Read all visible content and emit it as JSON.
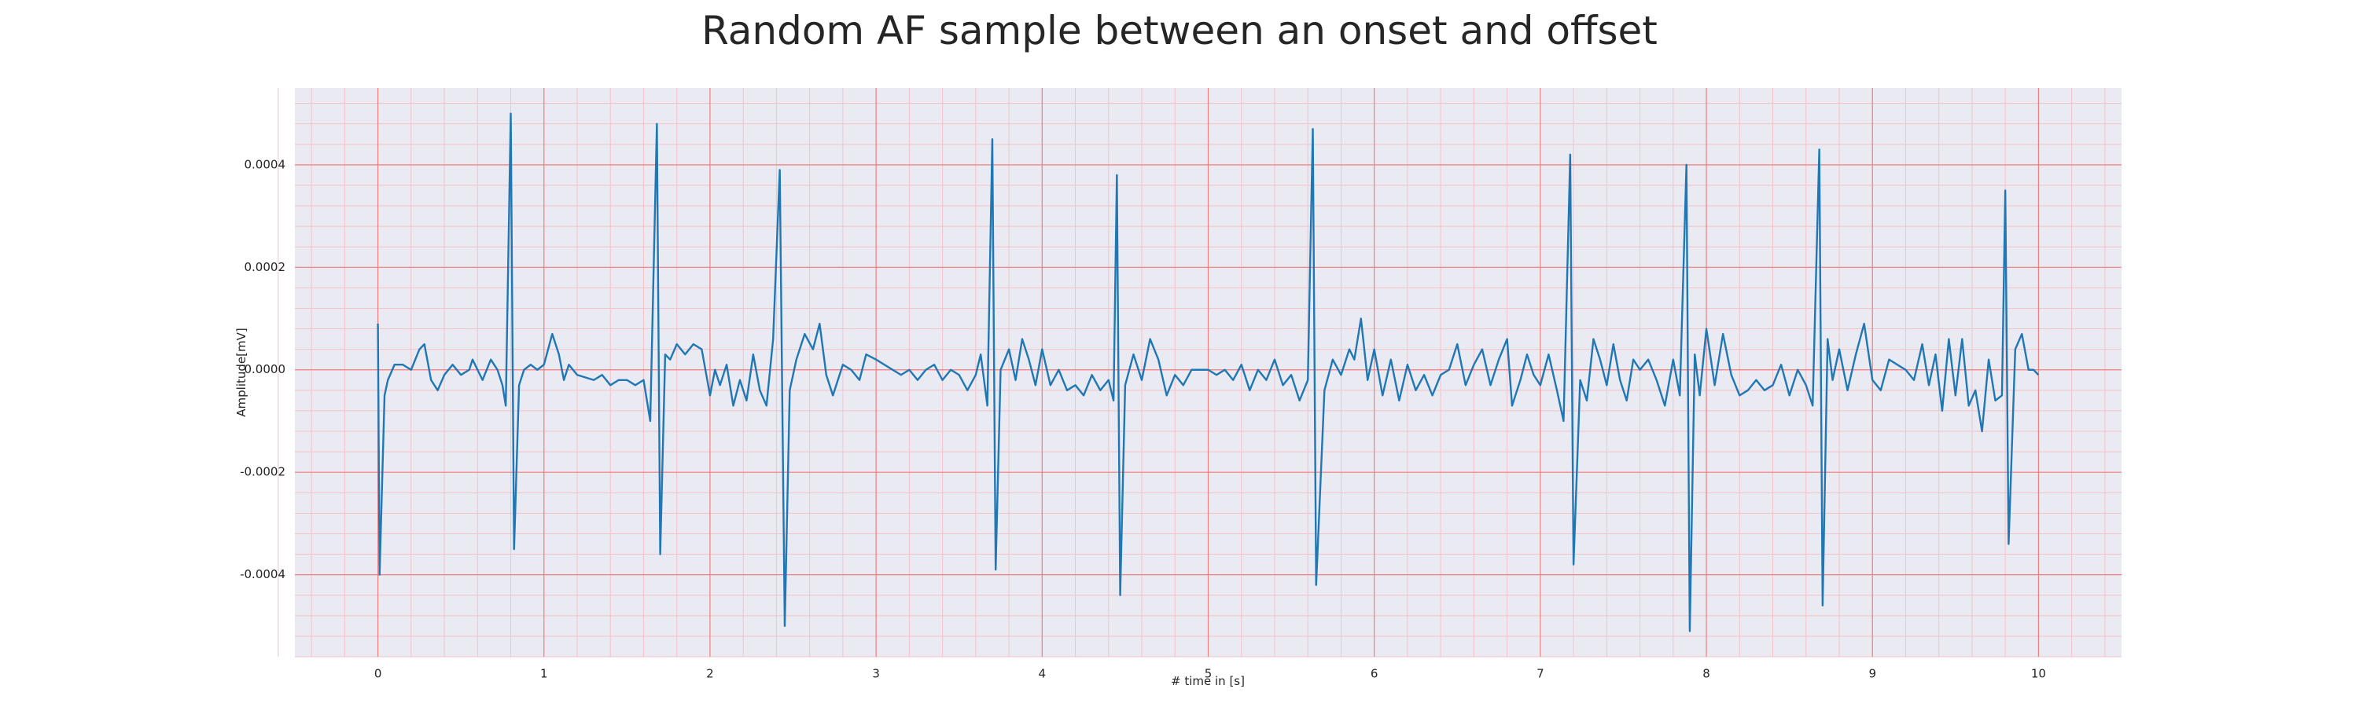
{
  "chart_data": {
    "type": "line",
    "title": "Random AF sample between an onset and offset",
    "xlabel": "# time in [s]",
    "ylabel": "Amplitude[mV]",
    "xlim": [
      -0.5,
      10.5
    ],
    "ylim": [
      -0.00056,
      0.00055
    ],
    "xticks": [
      0,
      1,
      2,
      3,
      4,
      5,
      6,
      7,
      8,
      9,
      10
    ],
    "yticks": [
      -0.0004,
      -0.0002,
      {
        "value": 0,
        "label": "0.0000"
      },
      0.0002,
      0.0004
    ],
    "grid": true,
    "minor_grid": true,
    "grid_color": "#f08080",
    "minor_grid_color": "#f4c2c8",
    "background": "#eaeaf2",
    "series": [
      {
        "color": "#1f77b4",
        "x": [
          0,
          0.01,
          0.04,
          0.06,
          0.1,
          0.15,
          0.2,
          0.25,
          0.28,
          0.32,
          0.36,
          0.4,
          0.45,
          0.5,
          0.55,
          0.57,
          0.6,
          0.63,
          0.68,
          0.72,
          0.75,
          0.77,
          0.8,
          0.82,
          0.85,
          0.88,
          0.92,
          0.96,
          1.0,
          1.05,
          1.09,
          1.12,
          1.15,
          1.2,
          1.3,
          1.35,
          1.4,
          1.45,
          1.5,
          1.55,
          1.6,
          1.64,
          1.68,
          1.7,
          1.73,
          1.76,
          1.8,
          1.85,
          1.9,
          1.95,
          2.0,
          2.03,
          2.06,
          2.1,
          2.14,
          2.18,
          2.22,
          2.26,
          2.3,
          2.34,
          2.38,
          2.42,
          2.45,
          2.48,
          2.52,
          2.57,
          2.62,
          2.66,
          2.7,
          2.74,
          2.8,
          2.85,
          2.9,
          2.94,
          3.0,
          3.05,
          3.1,
          3.15,
          3.2,
          3.25,
          3.3,
          3.35,
          3.4,
          3.45,
          3.5,
          3.55,
          3.6,
          3.63,
          3.67,
          3.7,
          3.72,
          3.75,
          3.8,
          3.84,
          3.88,
          3.92,
          3.96,
          4.0,
          4.05,
          4.1,
          4.15,
          4.2,
          4.25,
          4.3,
          4.35,
          4.4,
          4.43,
          4.45,
          4.47,
          4.5,
          4.55,
          4.6,
          4.65,
          4.7,
          4.75,
          4.8,
          4.85,
          4.9,
          5.0,
          5.05,
          5.1,
          5.15,
          5.2,
          5.25,
          5.3,
          5.35,
          5.4,
          5.45,
          5.5,
          5.55,
          5.6,
          5.63,
          5.65,
          5.7,
          5.75,
          5.8,
          5.85,
          5.88,
          5.92,
          5.96,
          6.0,
          6.05,
          6.1,
          6.15,
          6.2,
          6.25,
          6.3,
          6.35,
          6.4,
          6.45,
          6.5,
          6.55,
          6.6,
          6.65,
          6.7,
          6.75,
          6.8,
          6.83,
          6.88,
          6.92,
          6.96,
          7.0,
          7.05,
          7.1,
          7.14,
          7.18,
          7.2,
          7.24,
          7.28,
          7.32,
          7.36,
          7.4,
          7.44,
          7.48,
          7.52,
          7.56,
          7.6,
          7.65,
          7.7,
          7.75,
          7.8,
          7.84,
          7.88,
          7.9,
          7.93,
          7.96,
          8.0,
          8.05,
          8.1,
          8.15,
          8.2,
          8.25,
          8.3,
          8.35,
          8.4,
          8.45,
          8.5,
          8.55,
          8.6,
          8.64,
          8.68,
          8.7,
          8.73,
          8.76,
          8.8,
          8.85,
          8.9,
          8.95,
          9.0,
          9.05,
          9.1,
          9.15,
          9.2,
          9.25,
          9.3,
          9.34,
          9.38,
          9.42,
          9.46,
          9.5,
          9.54,
          9.58,
          9.62,
          9.66,
          9.7,
          9.74,
          9.78,
          9.8,
          9.82,
          9.86,
          9.9,
          9.94,
          9.97,
          10.0
        ],
        "values": [
          9e-05,
          -0.0004,
          -5e-05,
          -2e-05,
          1e-05,
          1e-05,
          0,
          4e-05,
          5e-05,
          -2e-05,
          -4e-05,
          -1e-05,
          1e-05,
          -1e-05,
          0,
          2e-05,
          0,
          -2e-05,
          2e-05,
          0,
          -3e-05,
          -7e-05,
          0.0005,
          -0.00035,
          -3e-05,
          0,
          1e-05,
          0,
          1e-05,
          7e-05,
          3e-05,
          -2e-05,
          1e-05,
          -1e-05,
          -2e-05,
          -1e-05,
          -3e-05,
          -2e-05,
          -2e-05,
          -3e-05,
          -2e-05,
          -0.0001,
          0.00048,
          -0.00036,
          3e-05,
          2e-05,
          5e-05,
          3e-05,
          5e-05,
          4e-05,
          -5e-05,
          0,
          -3e-05,
          1e-05,
          -7e-05,
          -2e-05,
          -6e-05,
          3e-05,
          -4e-05,
          -7e-05,
          6e-05,
          0.00039,
          -0.0005,
          -4e-05,
          2e-05,
          7e-05,
          4e-05,
          9e-05,
          -1e-05,
          -5e-05,
          1e-05,
          0,
          -2e-05,
          3e-05,
          2e-05,
          1e-05,
          0,
          -1e-05,
          0,
          -2e-05,
          0,
          1e-05,
          -2e-05,
          0,
          -1e-05,
          -4e-05,
          -1e-05,
          3e-05,
          -7e-05,
          0.00045,
          -0.00039,
          0,
          4e-05,
          -2e-05,
          6e-05,
          2e-05,
          -3e-05,
          4e-05,
          -3e-05,
          0,
          -4e-05,
          -3e-05,
          -5e-05,
          -1e-05,
          -4e-05,
          -2e-05,
          -6e-05,
          0.00038,
          -0.00044,
          -3e-05,
          3e-05,
          -2e-05,
          6e-05,
          2e-05,
          -5e-05,
          -1e-05,
          -3e-05,
          0,
          0,
          -1e-05,
          0,
          -2e-05,
          1e-05,
          -4e-05,
          0,
          -2e-05,
          2e-05,
          -3e-05,
          -1e-05,
          -6e-05,
          -2e-05,
          0.00047,
          -0.00042,
          -4e-05,
          2e-05,
          -1e-05,
          4e-05,
          2e-05,
          0.0001,
          -2e-05,
          4e-05,
          -5e-05,
          2e-05,
          -6e-05,
          1e-05,
          -4e-05,
          -1e-05,
          -5e-05,
          -1e-05,
          0,
          5e-05,
          -3e-05,
          1e-05,
          4e-05,
          -3e-05,
          2e-05,
          6e-05,
          -7e-05,
          -2e-05,
          3e-05,
          -1e-05,
          -3e-05,
          3e-05,
          -4e-05,
          -0.0001,
          0.00042,
          -0.00038,
          -2e-05,
          -6e-05,
          6e-05,
          2e-05,
          -3e-05,
          5e-05,
          -2e-05,
          -6e-05,
          2e-05,
          0,
          2e-05,
          -2e-05,
          -7e-05,
          2e-05,
          -5e-05,
          0.0004,
          -0.00051,
          3e-05,
          -5e-05,
          8e-05,
          -3e-05,
          7e-05,
          -1e-05,
          -5e-05,
          -4e-05,
          -2e-05,
          -4e-05,
          -3e-05,
          1e-05,
          -5e-05,
          0,
          -3e-05,
          -7e-05,
          0.00043,
          -0.00046,
          6e-05,
          -2e-05,
          4e-05,
          -4e-05,
          3e-05,
          9e-05,
          -2e-05,
          -4e-05,
          2e-05,
          1e-05,
          0,
          -2e-05,
          5e-05,
          -3e-05,
          3e-05,
          -8e-05,
          6e-05,
          -5e-05,
          6e-05,
          -7e-05,
          -4e-05,
          -0.00012,
          2e-05,
          -6e-05,
          -5e-05,
          0.00035,
          -0.00034,
          4e-05,
          7e-05,
          0,
          0,
          -1e-05
        ]
      }
    ]
  }
}
